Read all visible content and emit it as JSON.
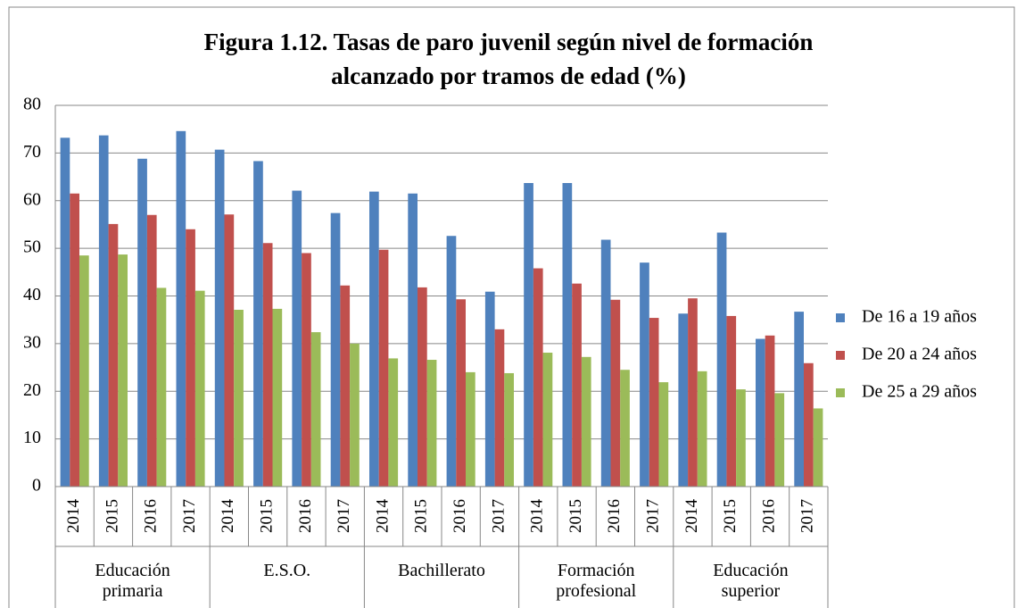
{
  "chart_data": {
    "type": "bar",
    "title": "Figura 1.12. Tasas de paro juvenil según nivel de formación",
    "subtitle": "alcanzado por tramos de edad (%)",
    "groups": [
      {
        "label": "Educación primaria",
        "categories": [
          "2014",
          "2015",
          "2016",
          "2017"
        ]
      },
      {
        "label": "E.S.O.",
        "categories": [
          "2014",
          "2015",
          "2016",
          "2017"
        ]
      },
      {
        "label": "Bachillerato",
        "categories": [
          "2014",
          "2015",
          "2016",
          "2017"
        ]
      },
      {
        "label": "Formación profesional",
        "categories": [
          "2014",
          "2015",
          "2016",
          "2017"
        ]
      },
      {
        "label": "Educación superior",
        "categories": [
          "2014",
          "2015",
          "2016",
          "2017"
        ]
      }
    ],
    "series": [
      {
        "name": "De 16 a 19 años",
        "color": "#4f81bd",
        "values": [
          73.2,
          73.7,
          68.8,
          74.6,
          70.7,
          68.3,
          62.1,
          57.4,
          61.9,
          61.5,
          52.6,
          40.9,
          63.7,
          63.7,
          51.8,
          47.0,
          36.3,
          53.3,
          31.0,
          36.7
        ]
      },
      {
        "name": "De 20 a 24 años",
        "color": "#c0504d",
        "values": [
          61.5,
          55.1,
          57.0,
          54.0,
          57.1,
          51.1,
          49.0,
          42.2,
          49.7,
          41.8,
          39.3,
          33.0,
          45.8,
          42.6,
          39.2,
          35.4,
          39.5,
          35.8,
          31.7,
          25.9
        ]
      },
      {
        "name": "De 25 a 29 años",
        "color": "#9bbb59",
        "values": [
          48.5,
          48.7,
          41.7,
          41.1,
          37.1,
          37.3,
          32.4,
          30.0,
          26.9,
          26.6,
          24.0,
          23.8,
          28.1,
          27.2,
          24.5,
          21.9,
          24.2,
          20.4,
          19.6,
          16.4
        ]
      }
    ],
    "ylim": [
      0,
      80
    ],
    "yticks": [
      0,
      10,
      20,
      30,
      40,
      50,
      60,
      70,
      80
    ],
    "grid": true,
    "legend": "right"
  }
}
